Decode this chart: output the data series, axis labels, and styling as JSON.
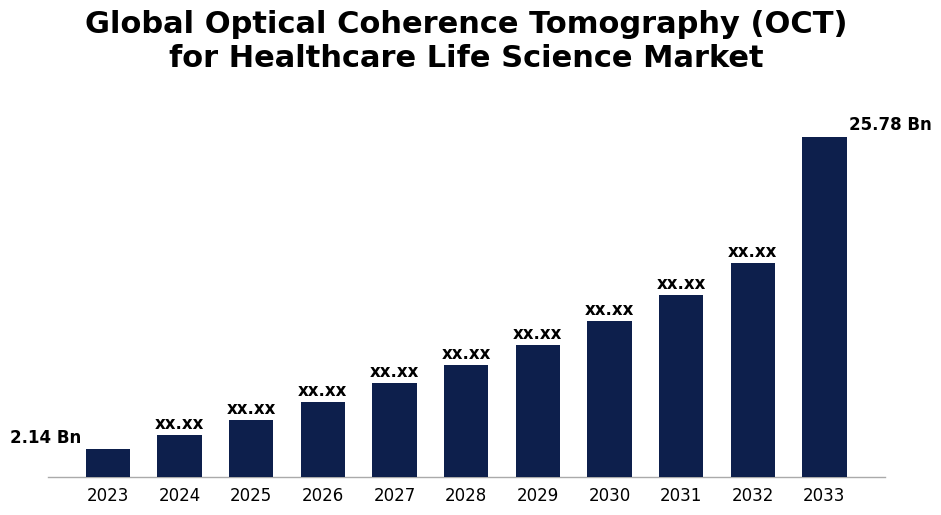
{
  "title_line1": "Global Optical Coherence Tomography (OCT)",
  "title_line2": "for Healthcare Life Science Market",
  "categories": [
    "2023",
    "2024",
    "2025",
    "2026",
    "2027",
    "2028",
    "2029",
    "2030",
    "2031",
    "2032",
    "2033"
  ],
  "values": [
    2.14,
    3.2,
    4.3,
    5.7,
    7.1,
    8.5,
    10.0,
    11.8,
    13.8,
    16.2,
    25.78
  ],
  "labels": [
    "2.14 Bn",
    "xx.xx",
    "xx.xx",
    "xx.xx",
    "xx.xx",
    "xx.xx",
    "xx.xx",
    "xx.xx",
    "xx.xx",
    "xx.xx",
    "25.78 Bn"
  ],
  "bar_color": "#0d1f4c",
  "background_color": "#ffffff",
  "label_color": "#000000",
  "title_fontsize": 22,
  "label_fontsize": 12,
  "tick_fontsize": 12,
  "ylim": [
    0,
    29
  ]
}
